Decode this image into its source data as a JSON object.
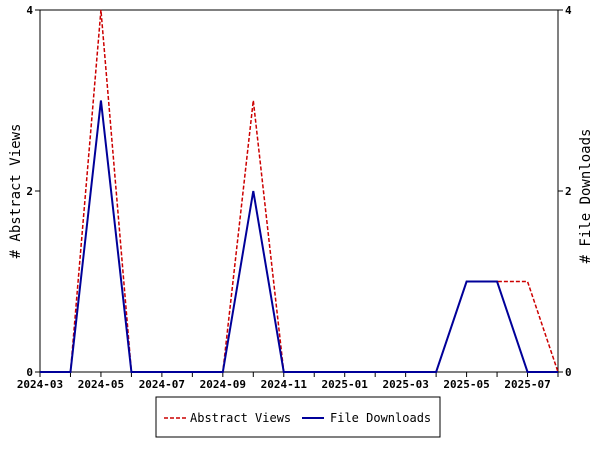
{
  "chart_data": {
    "type": "line",
    "x": [
      "2024-03",
      "2024-04",
      "2024-05",
      "2024-06",
      "2024-07",
      "2024-08",
      "2024-09",
      "2024-10",
      "2024-11",
      "2024-12",
      "2025-01",
      "2025-02",
      "2025-03",
      "2025-04",
      "2025-05",
      "2025-06",
      "2025-07",
      "2025-08"
    ],
    "x_tick_labels": [
      "2024-03",
      "2024-05",
      "2024-07",
      "2024-09",
      "2024-11",
      "2025-01",
      "2025-03",
      "2025-05",
      "2025-07"
    ],
    "series": [
      {
        "name": "Abstract Views",
        "color": "#cc0000",
        "dash": "dashed",
        "axis": "left",
        "values": [
          0,
          0,
          4,
          0,
          0,
          0,
          0,
          3,
          0,
          0,
          0,
          0,
          0,
          0,
          1,
          1,
          1,
          0
        ]
      },
      {
        "name": "File Downloads",
        "color": "#000099",
        "dash": "solid",
        "axis": "right",
        "values": [
          0,
          0,
          3,
          0,
          0,
          0,
          0,
          2,
          0,
          0,
          0,
          0,
          0,
          0,
          1,
          1,
          0,
          0
        ]
      }
    ],
    "ylabel_left": "# Abstract Views",
    "ylabel_right": "# File Downloads",
    "ylim": [
      0,
      4
    ],
    "y_ticks": [
      "0",
      "2",
      "4"
    ],
    "legend_position": "bottom"
  }
}
